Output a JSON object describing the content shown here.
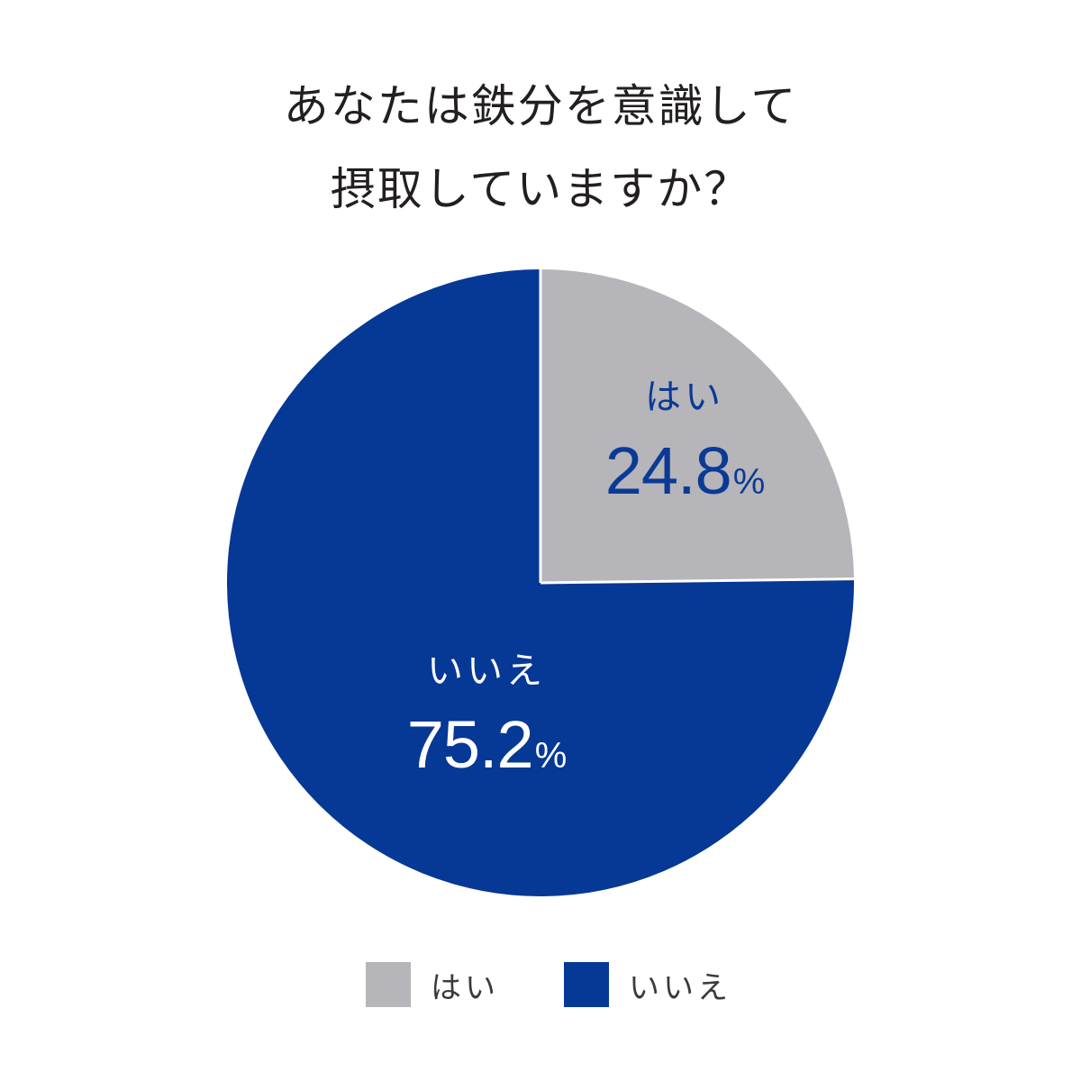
{
  "title": {
    "line1": "あなたは鉄分を意識して",
    "line2": "摂取していますか？"
  },
  "colors": {
    "yes": "#b6b5b9",
    "no": "#063895",
    "separator": "#ffffff",
    "title_text": "#231f20",
    "legend_text": "#3a3a3c"
  },
  "slices": [
    {
      "name": "はい",
      "value": "24.8",
      "unit": "%"
    },
    {
      "name": "いいえ",
      "value": "75.2",
      "unit": "%"
    }
  ],
  "legend": [
    {
      "label": "はい"
    },
    {
      "label": "いいえ"
    }
  ],
  "chart_data": {
    "type": "pie",
    "title": "あなたは鉄分を意識して摂取していますか？",
    "categories": [
      "はい",
      "いいえ"
    ],
    "values": [
      24.8,
      75.2
    ],
    "unit": "%",
    "colors": [
      "#b6b5b9",
      "#063895"
    ],
    "start_angle": "12 o'clock, clockwise",
    "legend_position": "bottom",
    "data_labels": [
      "はい 24.8%",
      "いいえ 75.2%"
    ]
  }
}
